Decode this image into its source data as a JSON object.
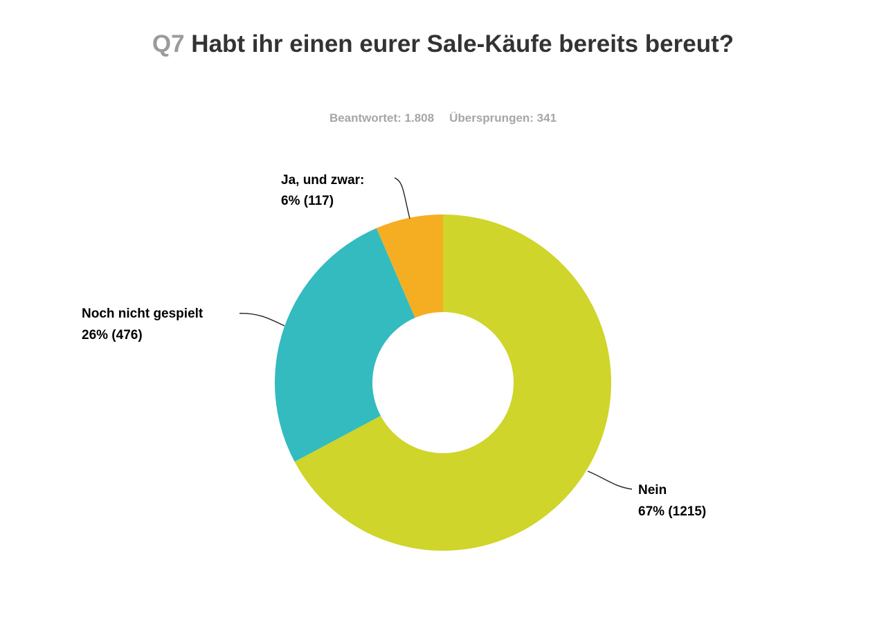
{
  "question": {
    "number": "Q7",
    "text": "Habt ihr einen eurer Sale-Käufe bereits bereut?"
  },
  "stats": {
    "answered": "Beantwortet: 1.808",
    "skipped": "Übersprungen: 341"
  },
  "chart_data": {
    "type": "pie",
    "variant": "donut",
    "slices": [
      {
        "name": "Nein",
        "percent_label": "67% (1215)",
        "percent": 67,
        "count": 1215,
        "color": "#cfd52a"
      },
      {
        "name": "Noch nicht gespielt",
        "percent_label": "26% (476)",
        "percent": 26,
        "count": 476,
        "color": "#34bbbf"
      },
      {
        "name": "Ja, und zwar:",
        "percent_label": "6% (117)",
        "percent": 6,
        "count": 117,
        "color": "#f5ae22"
      }
    ],
    "legend": "none",
    "labels": "outside with leader lines"
  }
}
